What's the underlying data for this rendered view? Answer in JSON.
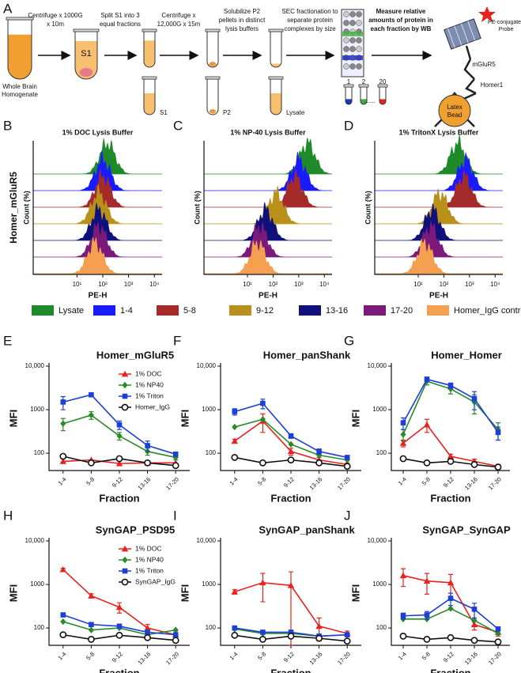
{
  "diagram": {
    "letters": [
      "A",
      "B",
      "C",
      "D",
      "E",
      "F",
      "G",
      "H",
      "I",
      "J"
    ],
    "start": [
      "Whole Brain",
      "Homogenate"
    ],
    "steps": [
      [
        "Centrifuge x 1000G",
        "x 10m"
      ],
      [
        "Split S1 into 3",
        "equal fractions"
      ],
      [
        "Centrifuge x",
        "12,000G x 15m"
      ],
      [
        "Solubilize P2",
        "pellets in distinct",
        "lysis buffers"
      ],
      [
        "SEC fractionation to",
        "separate protein",
        "complexes by size"
      ],
      [
        "Measure relative",
        "amounts of protein in",
        "each fraction by WB"
      ]
    ],
    "tube_text": "S1",
    "tube_labels": [
      "S1",
      "P2",
      "Lysate"
    ],
    "fractions": [
      "1",
      "2",
      "20"
    ],
    "dots": "......",
    "probe": [
      "PE-conjugated",
      "Probe"
    ],
    "target": "mGluR5",
    "partner": "Homer1",
    "bead": [
      "Latex",
      "Bead"
    ]
  },
  "legend": [
    {
      "name": "Lysate",
      "color": "#1f8a2a"
    },
    {
      "name": "1-4",
      "color": "#1a1aff"
    },
    {
      "name": "5-8",
      "color": "#a52a2a"
    },
    {
      "name": "9-12",
      "color": "#b8901a"
    },
    {
      "name": "13-16",
      "color": "#10107a"
    },
    {
      "name": "17-20",
      "color": "#7a1a7a"
    },
    {
      "name": "Homer_IgG control",
      "color": "#f5a050"
    }
  ],
  "chart_data": [
    {
      "type": "ridgeline",
      "title": "1% DOC Lysis Buffer",
      "row_label": "Homer_mGluR5",
      "ylabel": "Count (%)",
      "xlabel": "PE-H",
      "log_x": true,
      "xlim": [
        0.2,
        20000
      ],
      "xticks": [
        {
          "value": 10,
          "label": "10¹"
        },
        {
          "value": 100,
          "label": "10²"
        },
        {
          "value": 1000,
          "label": "10³"
        },
        {
          "value": 10000,
          "label": "10⁴"
        }
      ],
      "peaks": [
        150,
        100,
        100,
        70,
        70,
        70,
        50
      ]
    },
    {
      "type": "ridgeline",
      "title": "1% NP-40 Lysis Buffer",
      "ylabel": "Count (%)",
      "xlabel": "PE-H",
      "log_x": true,
      "xlim": [
        0.2,
        20000
      ],
      "xticks": [
        {
          "value": 10,
          "label": "10¹"
        },
        {
          "value": 100,
          "label": "10²"
        },
        {
          "value": 1000,
          "label": "10³"
        },
        {
          "value": 10000,
          "label": "10⁴"
        }
      ],
      "peaks": [
        2200,
        1000,
        700,
        130,
        50,
        30,
        25
      ]
    },
    {
      "type": "ridgeline",
      "title": "1% TritonX Lysis Buffer",
      "ylabel": "Count (%)",
      "xlabel": "PE-H",
      "log_x": true,
      "xlim": [
        0.2,
        20000
      ],
      "xticks": [
        {
          "value": 10,
          "label": "10¹"
        },
        {
          "value": 100,
          "label": "10²"
        },
        {
          "value": 1000,
          "label": "10³"
        },
        {
          "value": 10000,
          "label": "10⁴"
        }
      ],
      "peaks": [
        350,
        700,
        600,
        70,
        35,
        30,
        18
      ]
    },
    {
      "type": "line",
      "title": "Homer_mGluR5",
      "ylabel": "MFI",
      "xlabel": "Fraction",
      "log_y": true,
      "legend": true,
      "categories": [
        "1-4",
        "5-8",
        "9-12",
        "13-16",
        "17-20"
      ],
      "ylim": [
        40,
        10000
      ],
      "yticks": [
        100,
        1000,
        {
          "value": 10000,
          "label": "10,000"
        }
      ],
      "series": [
        {
          "name": "1% DOC",
          "color": "#e8221c",
          "marker": "triangle",
          "values": [
            65,
            70,
            58,
            60,
            60
          ]
        },
        {
          "name": "1% NP40",
          "color": "#2a8a2a",
          "marker": "diamond",
          "values": [
            480,
            750,
            250,
            110,
            80
          ],
          "errors": [
            150,
            150,
            50,
            20,
            10
          ]
        },
        {
          "name": "1% Triton",
          "color": "#1c3fd6",
          "marker": "square",
          "values": [
            1500,
            2200,
            450,
            150,
            95
          ],
          "errors": [
            500,
            200,
            100,
            40,
            10
          ]
        },
        {
          "name": "Homer_IgG",
          "color": "#111111",
          "marker": "circle",
          "values": [
            85,
            60,
            75,
            60,
            52
          ]
        }
      ]
    },
    {
      "type": "line",
      "title": "Homer_panShank",
      "ylabel": "MFI",
      "xlabel": "Fraction",
      "log_y": true,
      "categories": [
        "1-4",
        "5-8",
        "9-12",
        "13-16",
        "17-20"
      ],
      "ylim": [
        40,
        10000
      ],
      "yticks": [
        100,
        1000,
        {
          "value": 10000,
          "label": "10,000"
        }
      ],
      "series": [
        {
          "color": "#e8221c",
          "marker": "triangle",
          "values": [
            190,
            550,
            110,
            70,
            55
          ],
          "errors": [
            20,
            250,
            20,
            10,
            5
          ]
        },
        {
          "color": "#2a8a2a",
          "marker": "diamond",
          "values": [
            400,
            600,
            160,
            90,
            70
          ]
        },
        {
          "color": "#1c3fd6",
          "marker": "square",
          "values": [
            900,
            1400,
            250,
            110,
            80
          ],
          "errors": [
            150,
            350,
            30,
            15,
            8
          ]
        },
        {
          "color": "#111111",
          "marker": "circle",
          "values": [
            80,
            60,
            70,
            60,
            50
          ]
        }
      ]
    },
    {
      "type": "line",
      "title": "Homer_Homer",
      "ylabel": "MFI",
      "xlabel": "Fraction",
      "log_y": true,
      "categories": [
        "1-4",
        "5-8",
        "9-12",
        "13-16",
        "17-20"
      ],
      "ylim": [
        40,
        10000
      ],
      "yticks": [
        100,
        1000,
        {
          "value": 10000,
          "label": "10,000"
        }
      ],
      "series": [
        {
          "color": "#e8221c",
          "marker": "triangle",
          "values": [
            170,
            450,
            85,
            65,
            50
          ],
          "errors": [
            30,
            150,
            10,
            8,
            5
          ]
        },
        {
          "color": "#2a8a2a",
          "marker": "diamond",
          "values": [
            270,
            4500,
            3000,
            1500,
            350
          ],
          "errors": [
            80,
            800,
            700,
            700,
            150
          ]
        },
        {
          "color": "#1c3fd6",
          "marker": "square",
          "values": [
            500,
            5000,
            3600,
            1800,
            300
          ],
          "errors": [
            150,
            600,
            500,
            800,
            100
          ]
        },
        {
          "color": "#111111",
          "marker": "circle",
          "values": [
            75,
            60,
            65,
            55,
            48
          ]
        }
      ]
    },
    {
      "type": "line",
      "title": "SynGAP_PSD95",
      "ylabel": "MFI",
      "xlabel": "Fraction",
      "log_y": true,
      "legend": true,
      "categories": [
        "1-4",
        "5-8",
        "9-12",
        "13-16",
        "17-20"
      ],
      "ylim": [
        40,
        10000
      ],
      "yticks": [
        100,
        1000,
        {
          "value": 10000,
          "label": "10,000"
        }
      ],
      "series": [
        {
          "name": "1% DOC",
          "color": "#e8221c",
          "marker": "triangle",
          "values": [
            2200,
            550,
            300,
            100,
            70
          ],
          "errors": [
            150,
            60,
            80,
            20,
            15
          ]
        },
        {
          "name": "1% NP40",
          "color": "#2a8a2a",
          "marker": "diamond",
          "values": [
            140,
            90,
            100,
            70,
            90
          ]
        },
        {
          "name": "1% Triton",
          "color": "#1c3fd6",
          "marker": "square",
          "values": [
            200,
            120,
            110,
            80,
            70
          ]
        },
        {
          "name": "SynGAP_IgG",
          "color": "#111111",
          "marker": "circle",
          "values": [
            70,
            55,
            68,
            60,
            52
          ]
        }
      ]
    },
    {
      "type": "line",
      "title": "SynGAP_panShank",
      "ylabel": "MFI",
      "xlabel": "Fraction",
      "log_y": true,
      "categories": [
        "1-4",
        "5-8",
        "9-12",
        "13-16",
        "17-20"
      ],
      "ylim": [
        40,
        10000
      ],
      "yticks": [
        100,
        1000,
        {
          "value": 10000,
          "label": "10,000"
        }
      ],
      "series": [
        {
          "color": "#e8221c",
          "marker": "triangle",
          "values": [
            680,
            1100,
            950,
            110,
            75
          ],
          "errors": [
            80,
            700,
            1000,
            60,
            10
          ]
        },
        {
          "color": "#2a8a2a",
          "marker": "diamond",
          "values": [
            95,
            75,
            75,
            65,
            70
          ]
        },
        {
          "color": "#1c3fd6",
          "marker": "square",
          "values": [
            100,
            80,
            80,
            65,
            70
          ]
        },
        {
          "color": "#111111",
          "marker": "circle",
          "values": [
            68,
            55,
            65,
            58,
            50
          ]
        }
      ]
    },
    {
      "type": "line",
      "title": "SynGAP_SynGAP",
      "ylabel": "MFI",
      "xlabel": "Fraction",
      "log_y": true,
      "categories": [
        "1-4",
        "5-8",
        "9-12",
        "13-16",
        "17-20"
      ],
      "ylim": [
        40,
        10000
      ],
      "yticks": [
        100,
        1000,
        {
          "value": 10000,
          "label": "10,000"
        }
      ],
      "series": [
        {
          "color": "#e8221c",
          "marker": "triangle",
          "values": [
            1600,
            1200,
            1100,
            120,
            80
          ],
          "errors": [
            700,
            600,
            600,
            30,
            15
          ]
        },
        {
          "color": "#2a8a2a",
          "marker": "diamond",
          "values": [
            160,
            160,
            280,
            150,
            75
          ]
        },
        {
          "color": "#1c3fd6",
          "marker": "square",
          "values": [
            190,
            200,
            480,
            270,
            95
          ],
          "errors": [
            30,
            40,
            150,
            100,
            10
          ]
        },
        {
          "color": "#111111",
          "marker": "circle",
          "values": [
            65,
            55,
            60,
            52,
            48
          ]
        }
      ]
    }
  ]
}
